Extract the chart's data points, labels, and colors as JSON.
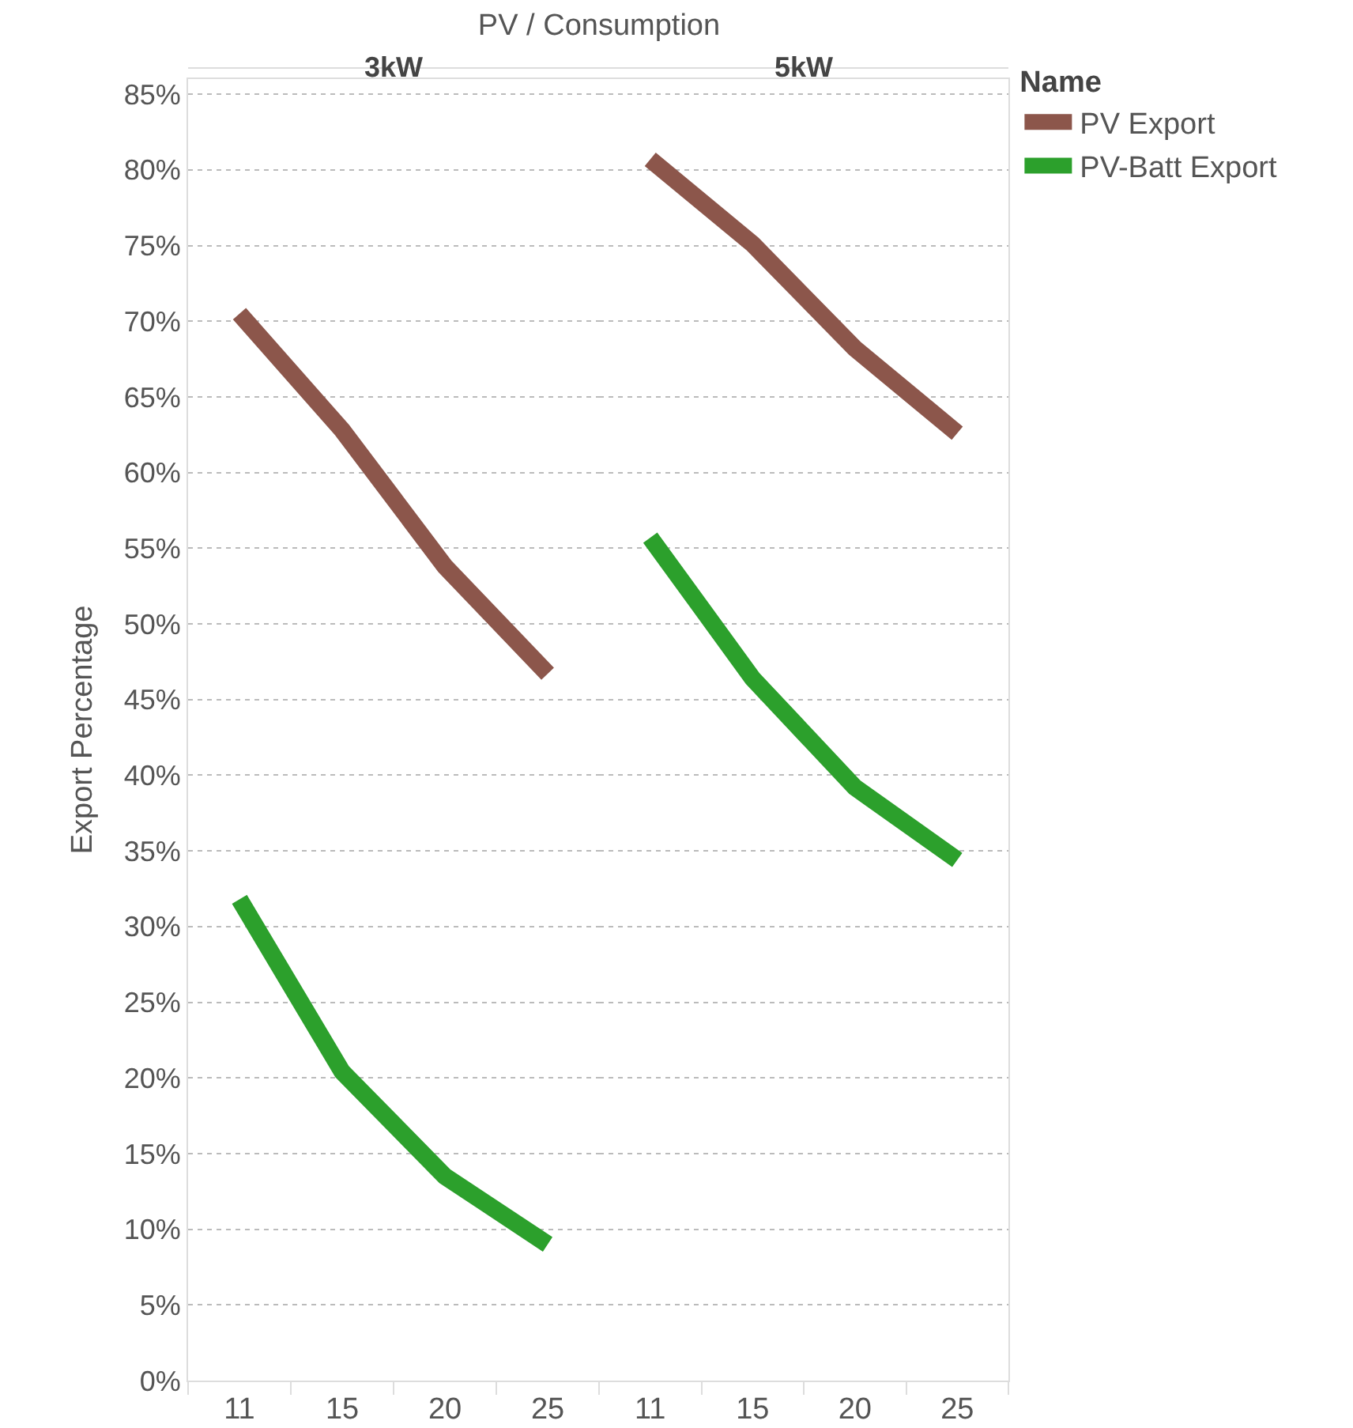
{
  "chart_data": [
    {
      "type": "line",
      "title": "3kW",
      "xlabel": "PV / Consumption",
      "ylabel": "Export Percentage",
      "categories": [
        "11",
        "15",
        "20",
        "25"
      ],
      "series": [
        {
          "color": "#8c564b",
          "values": [
            70.5,
            62.8,
            53.8,
            46.7
          ]
        },
        {
          "color": "#2ca02c",
          "values": [
            31.8,
            20.4,
            13.5,
            9.0
          ]
        }
      ],
      "ylim": [
        0,
        86
      ],
      "yticks": [
        {
          "value": 0,
          "label": "0%"
        },
        {
          "value": 5,
          "label": "5%"
        },
        {
          "value": 10,
          "label": "10%"
        },
        {
          "value": 15,
          "label": "15%"
        },
        {
          "value": 20,
          "label": "20%"
        },
        {
          "value": 25,
          "label": "25%"
        },
        {
          "value": 30,
          "label": "30%"
        },
        {
          "value": 35,
          "label": "35%"
        },
        {
          "value": 40,
          "label": "40%"
        },
        {
          "value": 45,
          "label": "45%"
        },
        {
          "value": 50,
          "label": "50%"
        },
        {
          "value": 55,
          "label": "55%"
        },
        {
          "value": 60,
          "label": "60%"
        },
        {
          "value": 65,
          "label": "65%"
        },
        {
          "value": 70,
          "label": "70%"
        },
        {
          "value": 75,
          "label": "75%"
        },
        {
          "value": 80,
          "label": "80%"
        },
        {
          "value": 85,
          "label": "85%"
        }
      ],
      "grid": "y",
      "legend": false,
      "marker": "none",
      "line_style": "solid"
    },
    {
      "type": "line",
      "title": "5kW",
      "legend_title": "Name",
      "categories": [
        "11",
        "15",
        "20",
        "25"
      ],
      "series": [
        {
          "name": "PV Export",
          "color": "#8c564b",
          "values": [
            80.7,
            75.1,
            68.2,
            62.6
          ]
        },
        {
          "name": "PV-Batt Export",
          "color": "#2ca02c",
          "values": [
            55.7,
            46.4,
            39.2,
            34.4
          ]
        }
      ],
      "ylim": [
        0,
        86
      ],
      "yticks": [
        0,
        5,
        10,
        15,
        20,
        25,
        30,
        35,
        40,
        45,
        50,
        55,
        60,
        65,
        70,
        75,
        80,
        85
      ],
      "tick_labels": "x",
      "grid": "y",
      "legend": "top right",
      "marker": "none",
      "line_style": "solid"
    }
  ]
}
